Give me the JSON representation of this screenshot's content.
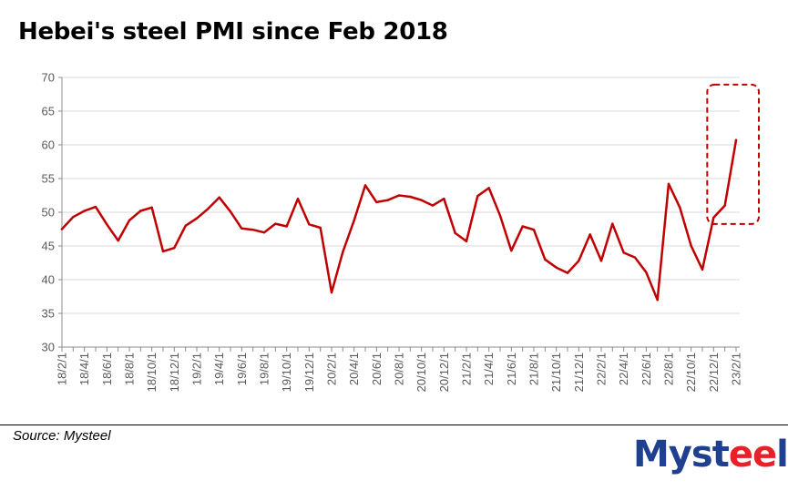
{
  "chart_data": {
    "type": "line",
    "title": "Hebei's steel PMI since Feb 2018",
    "xlabel": "",
    "ylabel": "",
    "ylim": [
      30,
      70
    ],
    "yticks": [
      30,
      35,
      40,
      45,
      50,
      55,
      60,
      65,
      70
    ],
    "grid": true,
    "line_color": "#c00000",
    "highlight_color": "#c00000",
    "highlight_range": [
      "22/12/1",
      "23/2/1"
    ],
    "x": [
      "18/2/1",
      "18/3/1",
      "18/4/1",
      "18/5/1",
      "18/6/1",
      "18/7/1",
      "18/8/1",
      "18/9/1",
      "18/10/1",
      "18/11/1",
      "18/12/1",
      "19/1/1",
      "19/2/1",
      "19/3/1",
      "19/4/1",
      "19/5/1",
      "19/6/1",
      "19/7/1",
      "19/8/1",
      "19/9/1",
      "19/10/1",
      "19/11/1",
      "19/12/1",
      "20/1/1",
      "20/2/1",
      "20/3/1",
      "20/4/1",
      "20/5/1",
      "20/6/1",
      "20/7/1",
      "20/8/1",
      "20/9/1",
      "20/10/1",
      "20/11/1",
      "20/12/1",
      "21/1/1",
      "21/2/1",
      "21/3/1",
      "21/4/1",
      "21/5/1",
      "21/6/1",
      "21/7/1",
      "21/8/1",
      "21/9/1",
      "21/10/1",
      "21/11/1",
      "21/12/1",
      "22/1/1",
      "22/2/1",
      "22/3/1",
      "22/4/1",
      "22/5/1",
      "22/6/1",
      "22/7/1",
      "22/8/1",
      "22/9/1",
      "22/10/1",
      "22/11/1",
      "22/12/1",
      "23/1/1",
      "23/2/1"
    ],
    "xtick_labels": [
      "18/2/1",
      "18/4/1",
      "18/6/1",
      "18/8/1",
      "18/10/1",
      "18/12/1",
      "19/2/1",
      "19/4/1",
      "19/6/1",
      "19/8/1",
      "19/10/1",
      "19/12/1",
      "20/2/1",
      "20/4/1",
      "20/6/1",
      "20/8/1",
      "20/10/1",
      "20/12/1",
      "21/2/1",
      "21/4/1",
      "21/6/1",
      "21/8/1",
      "21/10/1",
      "21/12/1",
      "22/2/1",
      "22/4/1",
      "22/6/1",
      "22/8/1",
      "22/10/1",
      "22/12/1",
      "23/2/1"
    ],
    "series": [
      {
        "name": "Hebei steel PMI",
        "values": [
          47.5,
          49.3,
          50.2,
          50.8,
          48.2,
          45.8,
          48.8,
          50.2,
          50.7,
          44.2,
          44.7,
          48.0,
          49.1,
          50.5,
          52.2,
          50.1,
          47.6,
          47.4,
          47.0,
          48.3,
          47.9,
          52.0,
          48.2,
          47.7,
          38.1,
          44.1,
          48.8,
          54.0,
          51.5,
          51.8,
          52.5,
          52.3,
          51.8,
          51.0,
          52.0,
          46.9,
          45.7,
          52.4,
          53.6,
          49.5,
          44.3,
          47.9,
          47.4,
          43.0,
          41.8,
          41.0,
          42.8,
          46.7,
          42.8,
          48.3,
          44.0,
          43.3,
          41.1,
          37.0,
          54.2,
          50.7,
          45.0,
          41.5,
          49.2,
          51.0,
          60.7
        ]
      }
    ]
  },
  "footer": {
    "source": "Source: Mysteel",
    "logo_main": "Myst",
    "logo_accent": "ee",
    "logo_end": "l"
  }
}
